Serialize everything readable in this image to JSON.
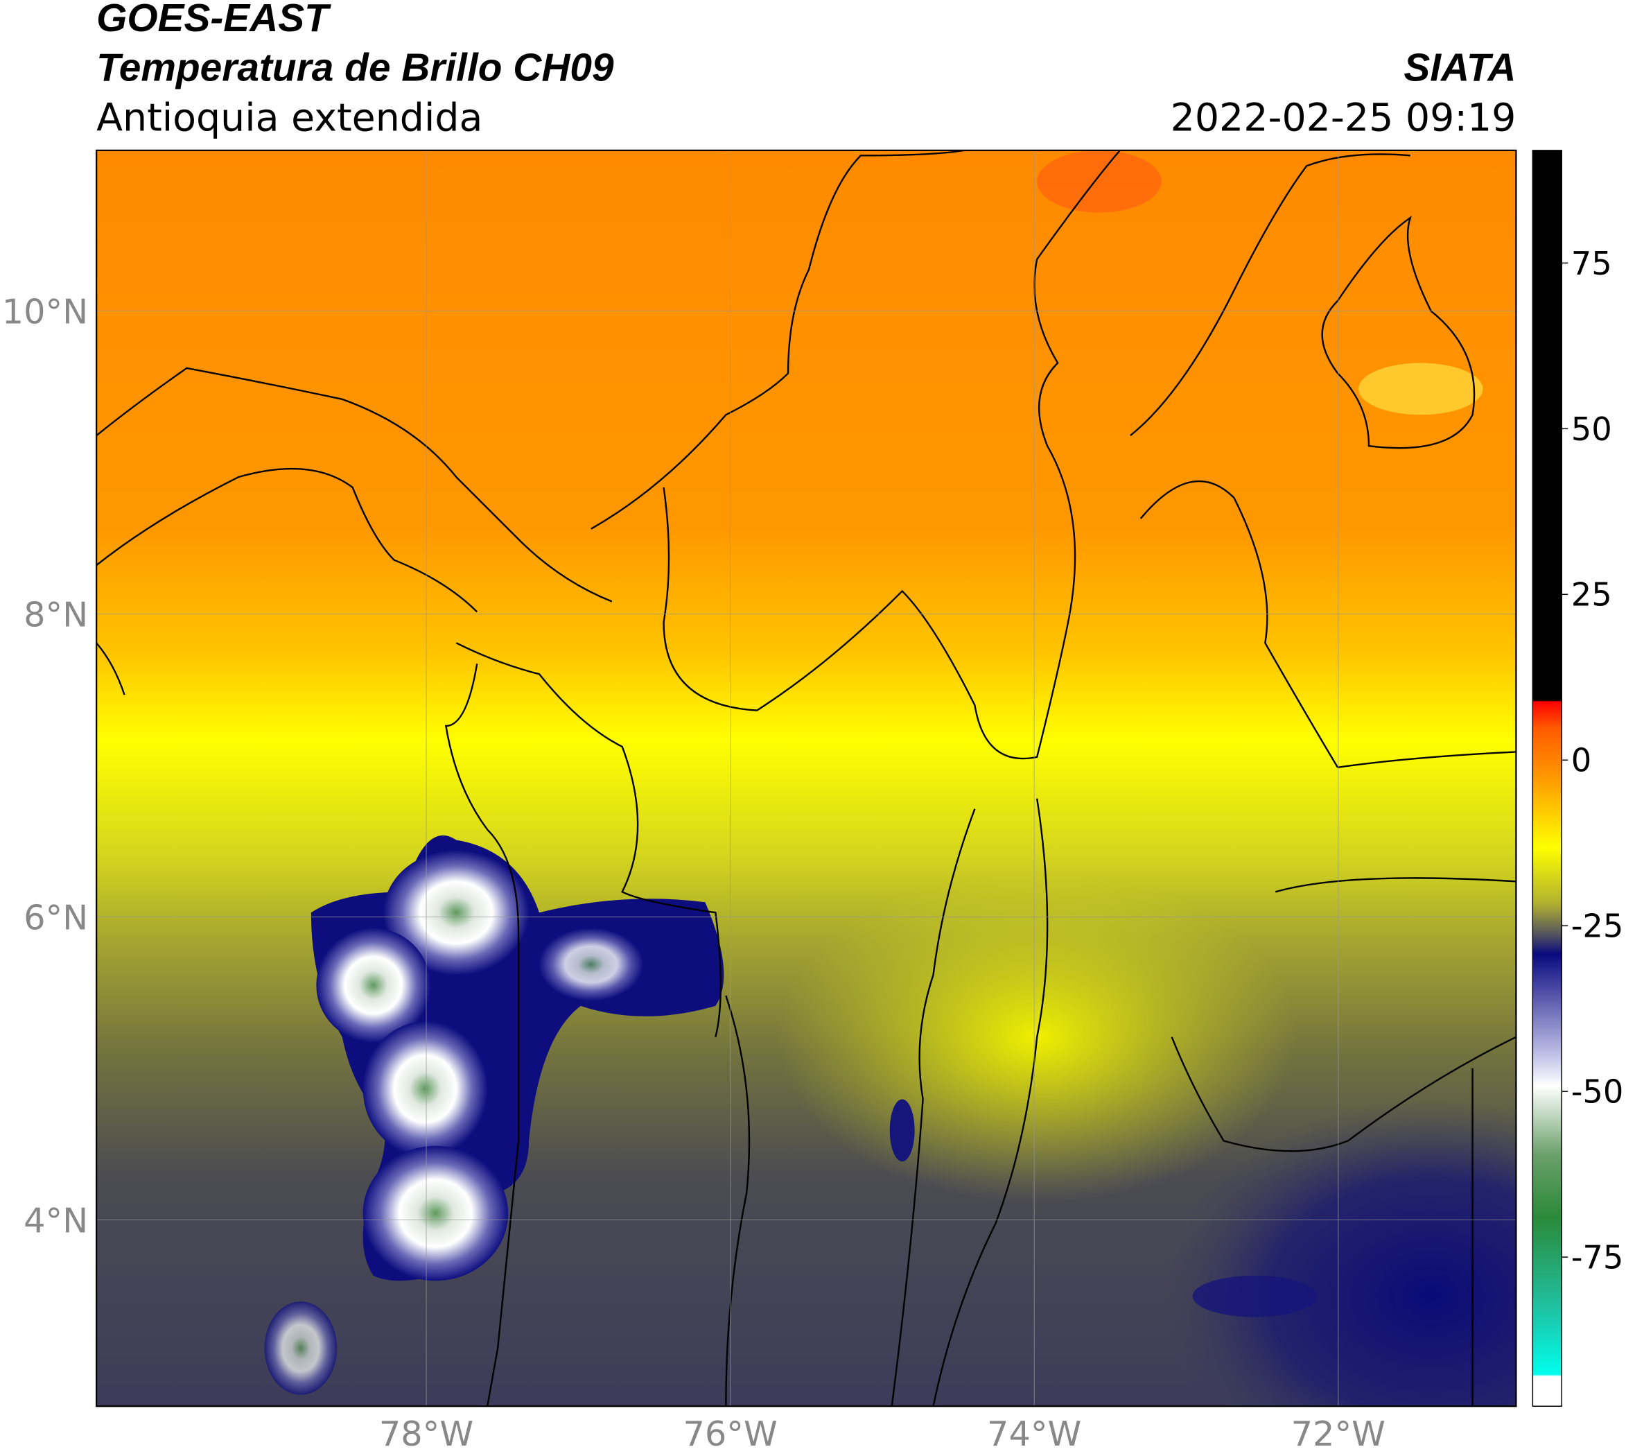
{
  "header": {
    "title": "GOES-EAST",
    "subtitle": "Temperatura de Brillo CH09",
    "region": "Antioquia extendida",
    "source": "SIATA",
    "timestamp": "2022-02-25 09:19"
  },
  "map": {
    "lonlim": [
      -80.17,
      -70.83
    ],
    "latlim": [
      2.77,
      11.06
    ],
    "lonticks": [
      {
        "value": -78,
        "label": "78°W"
      },
      {
        "value": -76,
        "label": "76°W"
      },
      {
        "value": -74,
        "label": "74°W"
      },
      {
        "value": -72,
        "label": "72°W"
      }
    ],
    "latticks": [
      {
        "value": 4,
        "label": "4°N"
      },
      {
        "value": 6,
        "label": "6°N"
      },
      {
        "value": 8,
        "label": "8°N"
      },
      {
        "value": 10,
        "label": "10°N"
      }
    ]
  },
  "colorbar": {
    "lim": [
      -97.5,
      92
    ],
    "ticks": [
      -75,
      -50,
      -25,
      0,
      25,
      50,
      75
    ]
  }
}
